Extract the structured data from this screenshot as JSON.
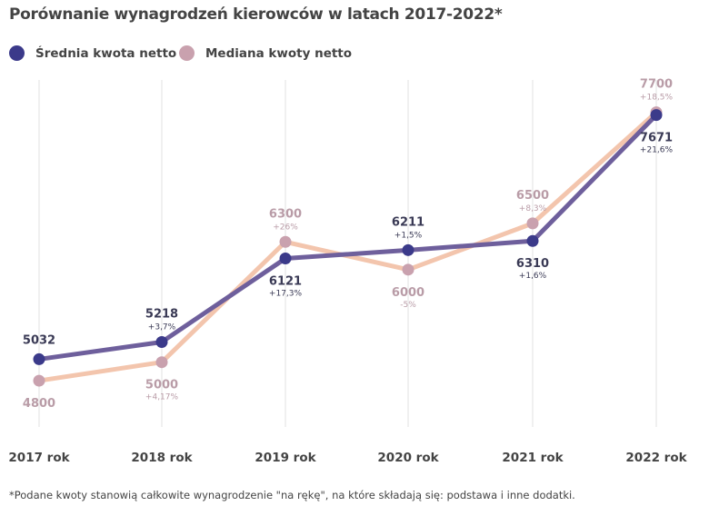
{
  "chart_data": {
    "type": "line",
    "title": "Porównanie wynagrodzeń kierowców w latach 2017-2022*",
    "categories": [
      "2017 rok",
      "2018 rok",
      "2019 rok",
      "2020 rok",
      "2021 rok",
      "2022 rok"
    ],
    "ylim": [
      4300,
      8050
    ],
    "grid": "vertical",
    "legend_position": "top-left",
    "series": [
      {
        "name": "Średnia kwota netto",
        "values": [
          5032,
          5218,
          6121,
          6211,
          6310,
          7671
        ],
        "changes": [
          "",
          "+3,7%",
          "+17,3%",
          "+1,5%",
          "+1,6%",
          "+21,6%"
        ],
        "line_color": "#6e5f9c",
        "dot_color": "#3b3a8a",
        "label_color": "#3a3a55"
      },
      {
        "name": "Mediana kwoty netto",
        "values": [
          4800,
          5000,
          6300,
          6000,
          6500,
          7700
        ],
        "changes": [
          "",
          "+4,17%",
          "+26%",
          "-5%",
          "+8,3%",
          "+18,5%"
        ],
        "line_color": "#f3c5ad",
        "dot_color": "#c9a1ae",
        "label_color": "#b99ca7"
      }
    ],
    "footnote": "*Podane kwoty stanowią całkowite wynagrodzenie \"na rękę\", na które składają się: podstawa i inne dodatki."
  }
}
